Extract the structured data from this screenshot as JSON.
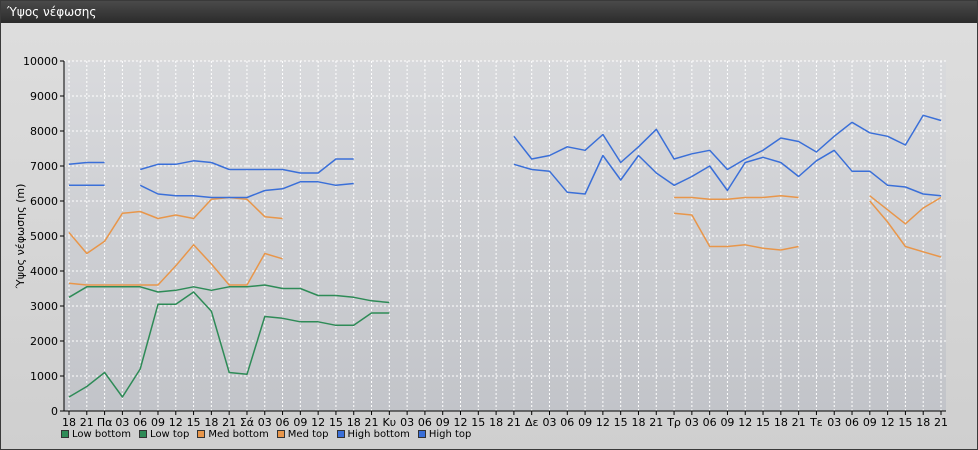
{
  "window": {
    "title": "Ύψος νέφωσης"
  },
  "chart_data": {
    "type": "line",
    "ylabel": "Ύψος νέφωσης (m)",
    "ylim": [
      0,
      10000
    ],
    "yticks": [
      0,
      1000,
      2000,
      3000,
      4000,
      5000,
      6000,
      7000,
      8000,
      9000,
      10000
    ],
    "grid": true,
    "legend": "bottom-left",
    "categories": [
      "18",
      "21",
      "Πα",
      "03",
      "06",
      "09",
      "12",
      "15",
      "18",
      "21",
      "Σά",
      "03",
      "06",
      "09",
      "12",
      "15",
      "18",
      "21",
      "Κυ",
      "03",
      "06",
      "09",
      "12",
      "15",
      "18",
      "21",
      "Δε",
      "03",
      "06",
      "09",
      "12",
      "15",
      "18",
      "21",
      "Τρ",
      "03",
      "06",
      "09",
      "12",
      "15",
      "18",
      "21",
      "Τε",
      "03",
      "06",
      "09",
      "12",
      "15",
      "18",
      "21"
    ],
    "series": [
      {
        "name": "Low bottom",
        "color": "#2e8b57",
        "values": [
          400,
          700,
          1100,
          400,
          1200,
          3050,
          3050,
          3400,
          2850,
          1100,
          1050,
          2700,
          2650,
          2550,
          2550,
          2450,
          2450,
          2800,
          2800,
          null,
          null,
          null,
          null,
          null,
          null,
          null,
          null,
          null,
          null,
          null,
          null,
          null,
          null,
          null,
          null,
          null,
          null,
          null,
          null,
          null,
          null,
          null,
          null,
          null,
          null,
          null,
          null,
          null,
          null,
          null
        ]
      },
      {
        "name": "Low top",
        "color": "#2e8b57",
        "values": [
          3250,
          3550,
          3550,
          3550,
          3550,
          3400,
          3450,
          3550,
          3450,
          3550,
          3550,
          3600,
          3500,
          3500,
          3300,
          3300,
          3250,
          3150,
          3100,
          null,
          null,
          null,
          null,
          null,
          null,
          null,
          null,
          null,
          null,
          null,
          null,
          null,
          null,
          null,
          null,
          null,
          null,
          null,
          null,
          null,
          null,
          null,
          null,
          null,
          null,
          null,
          null,
          null,
          null,
          null
        ]
      },
      {
        "name": "Med bottom",
        "color": "#e8964a",
        "values": [
          3650,
          3600,
          3600,
          3600,
          3600,
          3600,
          4150,
          4750,
          4200,
          3600,
          3600,
          4500,
          4350,
          null,
          null,
          null,
          null,
          null,
          null,
          null,
          null,
          null,
          null,
          null,
          null,
          null,
          null,
          null,
          null,
          null,
          null,
          null,
          null,
          null,
          5650,
          5600,
          4700,
          4700,
          4750,
          4650,
          4600,
          4700,
          null,
          null,
          null,
          6000,
          5400,
          4700,
          4550,
          4400
        ]
      },
      {
        "name": "Med top",
        "color": "#e8964a",
        "values": [
          5100,
          4500,
          4850,
          5650,
          5700,
          5500,
          5600,
          5500,
          6050,
          6100,
          6050,
          5550,
          5500,
          null,
          null,
          null,
          null,
          null,
          null,
          null,
          null,
          null,
          null,
          null,
          null,
          null,
          null,
          null,
          null,
          null,
          null,
          null,
          null,
          null,
          6100,
          6100,
          6050,
          6050,
          6100,
          6100,
          6150,
          6100,
          null,
          null,
          null,
          6150,
          5750,
          5350,
          5800,
          6100
        ]
      },
      {
        "name": "High bottom",
        "color": "#3a6fd8",
        "values": [
          6450,
          6450,
          6450,
          null,
          6450,
          6200,
          6150,
          6150,
          6100,
          6100,
          6100,
          6300,
          6350,
          6550,
          6550,
          6450,
          6500,
          null,
          null,
          null,
          null,
          null,
          null,
          null,
          null,
          7050,
          6900,
          6850,
          6250,
          6200,
          7300,
          6600,
          7300,
          6800,
          6450,
          6700,
          7000,
          6300,
          7100,
          7250,
          7100,
          6700,
          7150,
          7450,
          6850,
          6850,
          6450,
          6400,
          6200,
          6150
        ]
      },
      {
        "name": "High top",
        "color": "#3a6fd8",
        "values": [
          7050,
          7100,
          7100,
          null,
          6900,
          7050,
          7050,
          7150,
          7100,
          6900,
          6900,
          6900,
          6900,
          6800,
          6800,
          7200,
          7200,
          null,
          null,
          null,
          null,
          null,
          null,
          null,
          null,
          7850,
          7200,
          7300,
          7550,
          7450,
          7900,
          7100,
          7550,
          8050,
          7200,
          7350,
          7450,
          6900,
          7200,
          7450,
          7800,
          7700,
          7400,
          7850,
          8250,
          7950,
          7850,
          7600,
          8450,
          8300
        ]
      }
    ]
  }
}
